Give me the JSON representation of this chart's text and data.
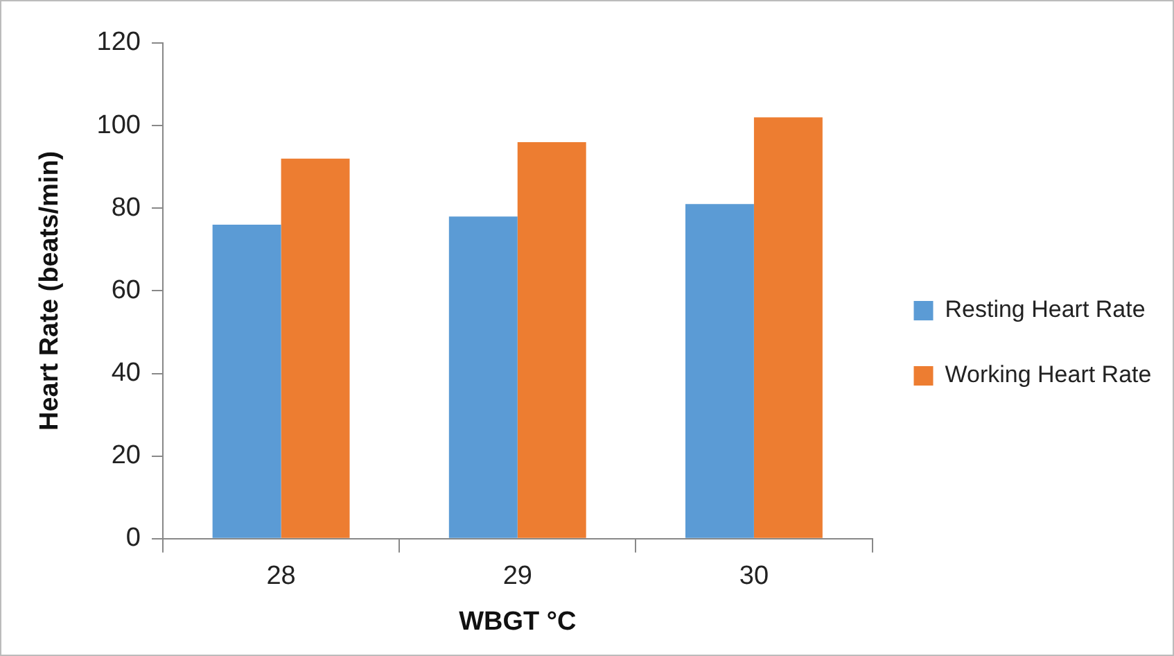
{
  "chart_data": {
    "type": "bar",
    "xlabel": "WBGT °C",
    "ylabel": "Heart Rate (beats/min)",
    "categories": [
      "28",
      "29",
      "30"
    ],
    "series": [
      {
        "name": "Resting Heart Rate",
        "color": "#5b9bd5",
        "values": [
          76,
          78,
          81
        ]
      },
      {
        "name": "Working Heart Rate",
        "color": "#ed7d31",
        "values": [
          92,
          96,
          102
        ]
      }
    ],
    "ylim": [
      0,
      120
    ],
    "yticks": [
      0,
      20,
      40,
      60,
      80,
      100,
      120
    ],
    "grid": false,
    "legend": "right"
  }
}
